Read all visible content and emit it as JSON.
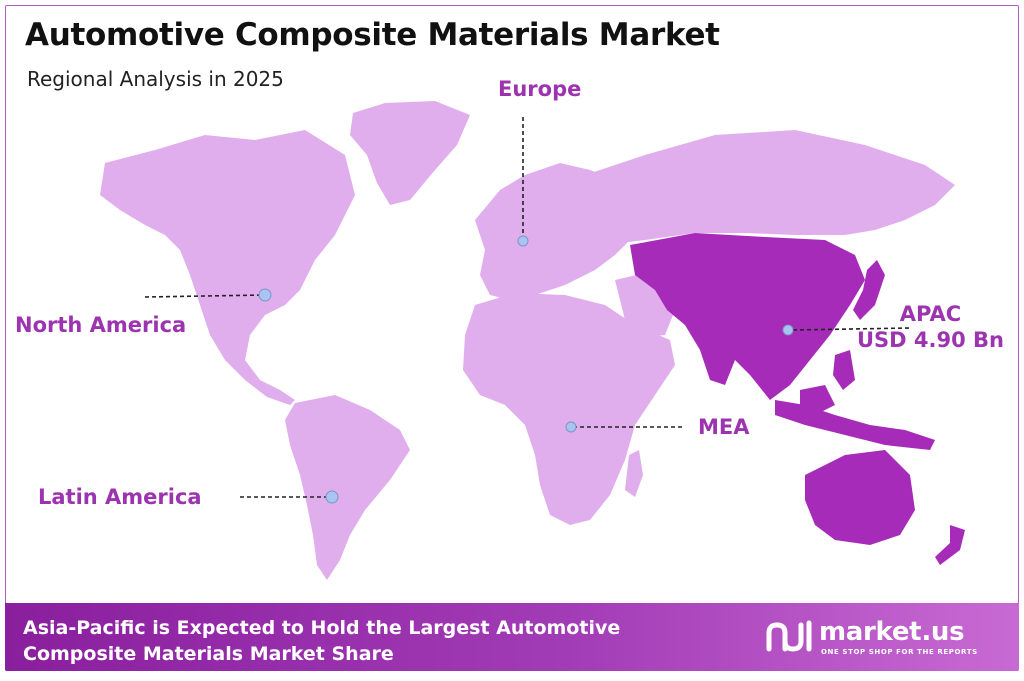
{
  "header": {
    "title": "Automotive Composite Materials Market",
    "subtitle": "Regional Analysis in 2025"
  },
  "colors": {
    "land": "#e0aeec",
    "highlight": "#a52bb8",
    "label": "#9b34ae",
    "marker": "#a9c4f0",
    "footer_start": "#8a1f9e",
    "footer_end": "#c86ad3"
  },
  "regions": [
    {
      "name": "Europe",
      "highlighted": false
    },
    {
      "name": "North America",
      "highlighted": false
    },
    {
      "name": "APAC",
      "value": "USD 4.90 Bn",
      "highlighted": true
    },
    {
      "name": "MEA",
      "highlighted": false
    },
    {
      "name": "Latin America",
      "highlighted": false
    }
  ],
  "footer": {
    "text_line1": "Asia-Pacific is Expected to Hold the Largest Automotive",
    "text_line2": "Composite Materials Market Share",
    "brand_name": "market.us",
    "brand_tagline": "ONE STOP SHOP FOR THE REPORTS",
    "brand_icon": "market-us-logo-icon"
  }
}
